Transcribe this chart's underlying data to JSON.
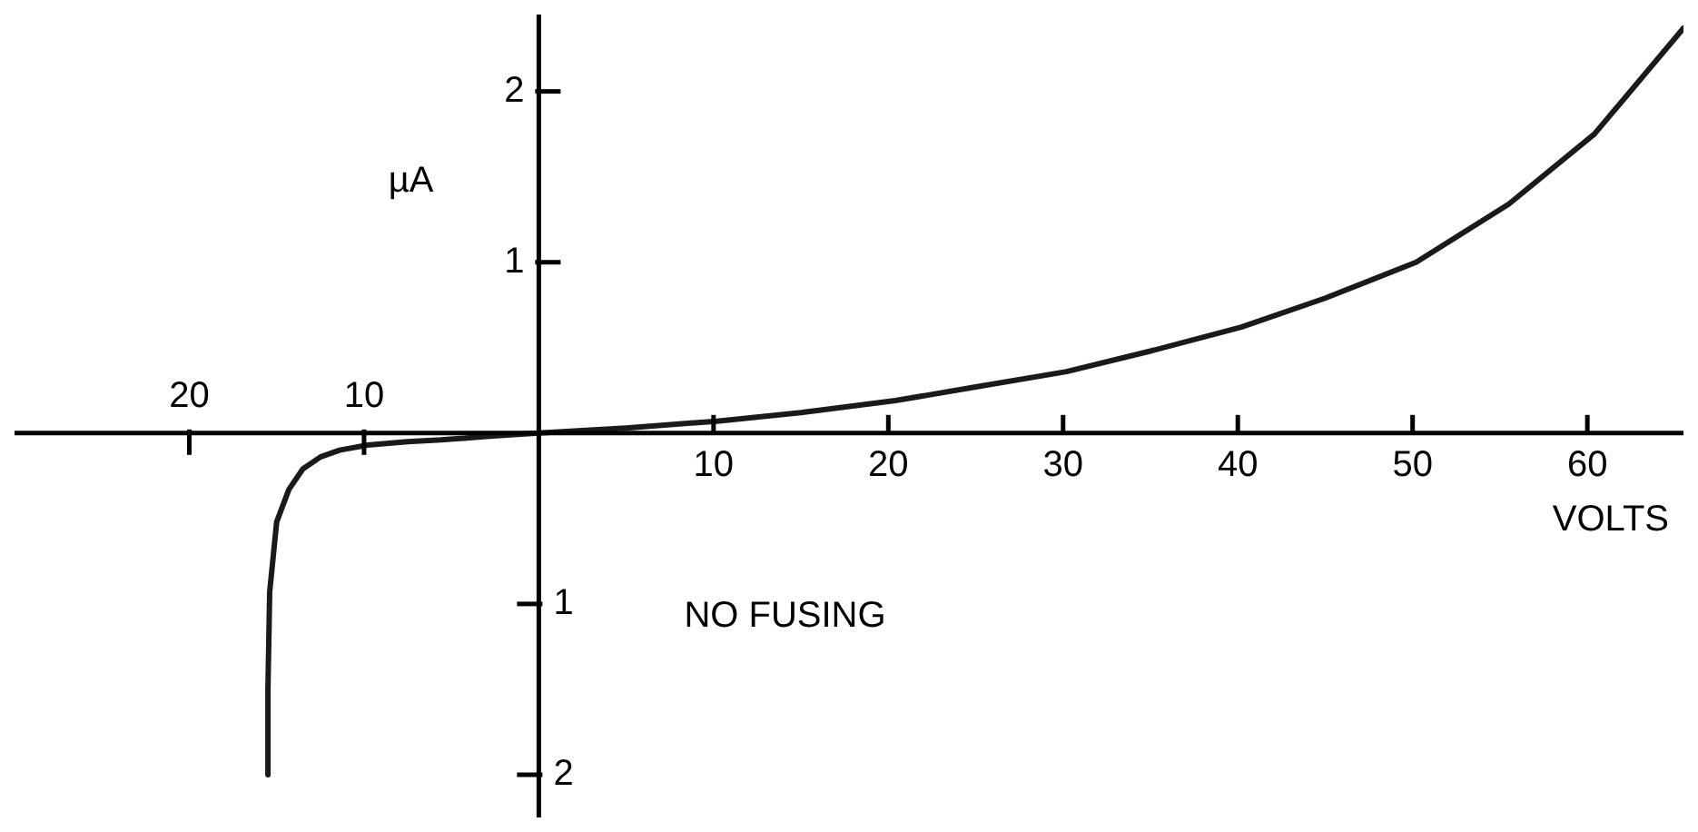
{
  "chart_data": {
    "type": "line",
    "xlabel": "VOLTS",
    "ylabel": "µA",
    "annotations": [
      "NO FUSING"
    ],
    "series": [
      {
        "color": "#1a1a1a",
        "x": [
          -15.5,
          -15.5,
          -15.4,
          -15,
          -14.3,
          -13.5,
          -12.5,
          -11.4,
          -9.8,
          -7.5,
          -5.6,
          -3,
          0,
          5,
          10.2,
          15,
          20.4,
          25,
          30.2,
          35,
          40.2,
          45,
          50.2,
          55.5,
          60.4,
          65.5
        ],
        "values": [
          -2,
          -1.5,
          -0.93,
          -0.52,
          -0.33,
          -0.21,
          -0.14,
          -0.1,
          -0.07,
          -0.05,
          -0.04,
          -0.02,
          0,
          0.03,
          0.07,
          0.12,
          0.19,
          0.27,
          0.36,
          0.48,
          0.62,
          0.79,
          1.0,
          1.34,
          1.75,
          2.37
        ]
      }
    ],
    "xlim": [
      -30,
      65.5
    ],
    "ylim": [
      -2.25,
      2.45
    ],
    "xticks": [
      10,
      20,
      30,
      40,
      50,
      60
    ],
    "x2lim": [
      -30,
      65.5
    ],
    "x2ticks": [
      {
        "value": -20,
        "label": "20"
      },
      {
        "value": -10,
        "label": "10"
      }
    ],
    "yticks": [
      1,
      2
    ],
    "y2lim": [
      -2.25,
      2.45
    ],
    "y2ticks": [
      {
        "value": -2,
        "label": "2"
      },
      {
        "value": -1,
        "label": "1"
      }
    ],
    "grid": false,
    "legend": false,
    "marker": "none",
    "line_style": "solid"
  }
}
